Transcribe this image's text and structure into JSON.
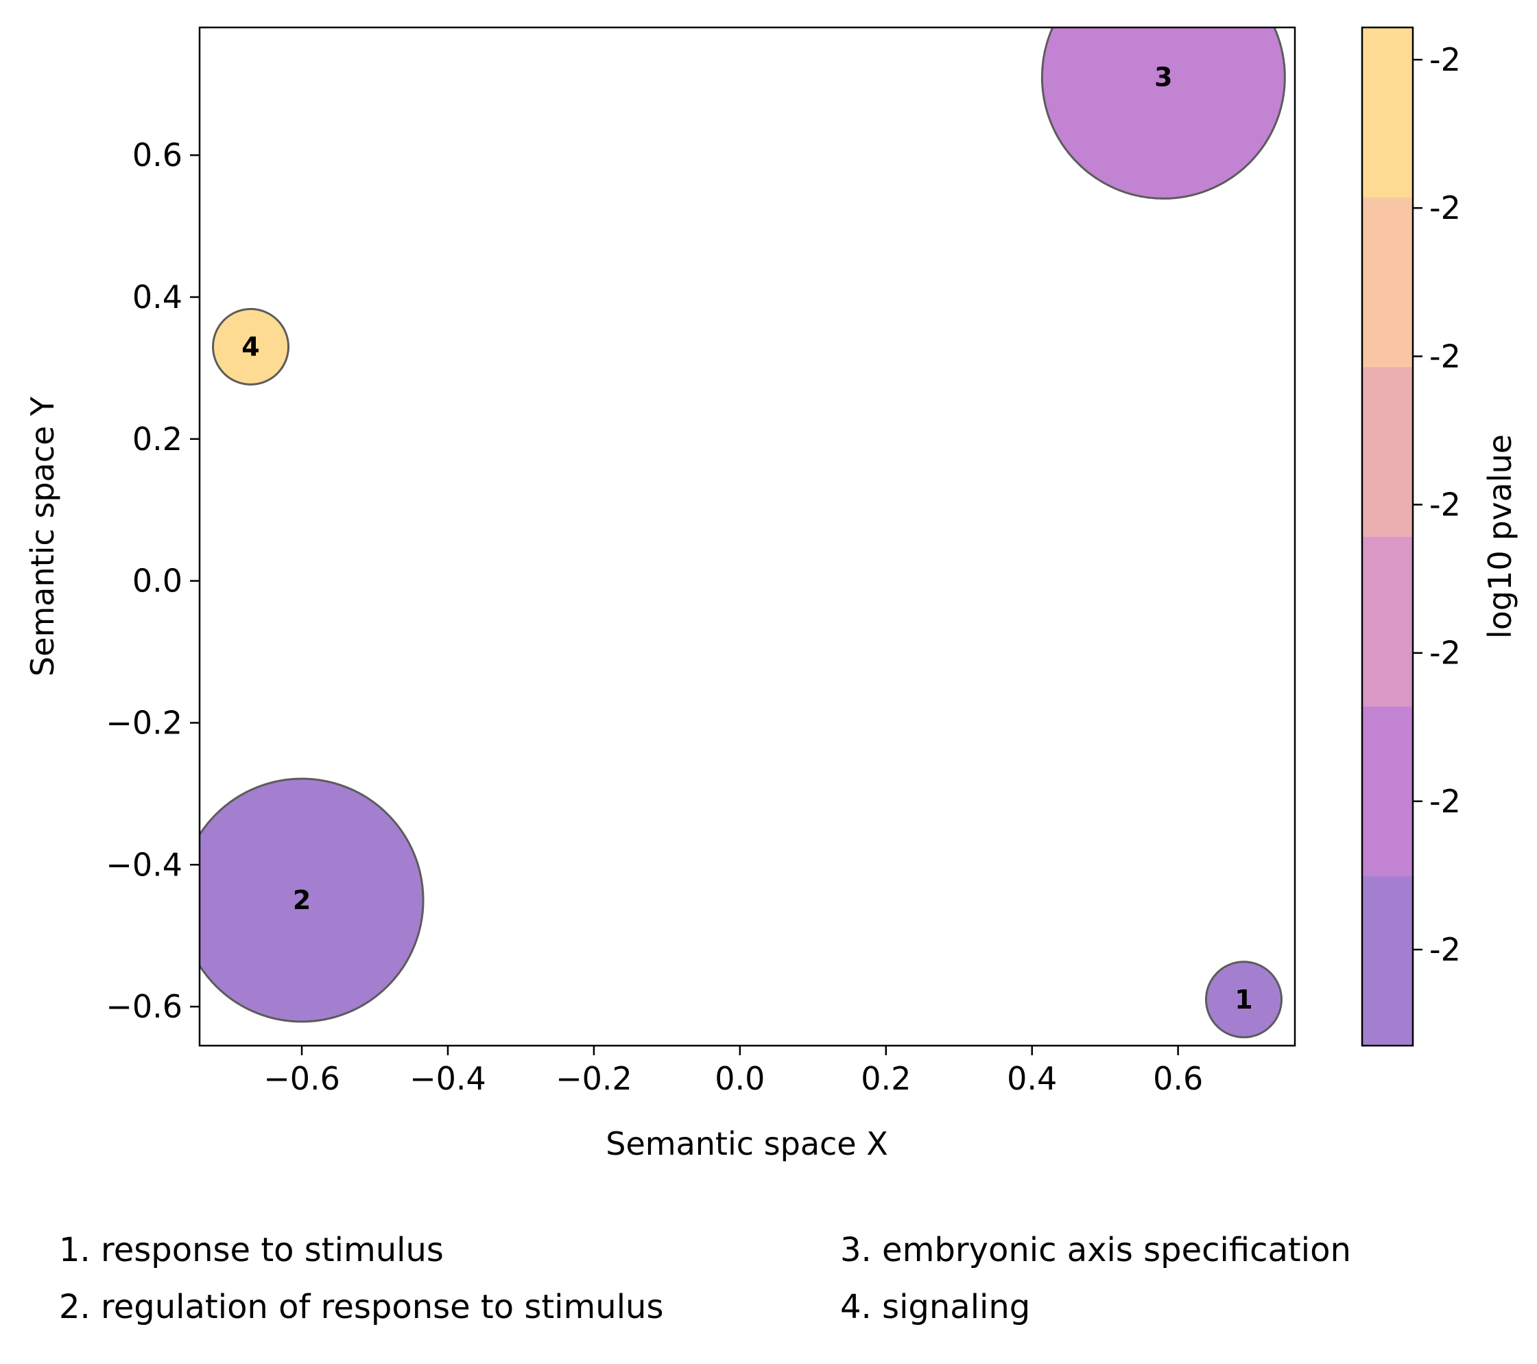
{
  "chart_data": {
    "type": "scatter",
    "xlabel": "Semantic space X",
    "ylabel": "Semantic space Y",
    "xlim": [
      -0.74,
      0.76
    ],
    "ylim": [
      -0.655,
      0.78
    ],
    "x_ticks": [
      -0.6,
      -0.4,
      -0.2,
      0.0,
      0.2,
      0.4,
      0.6
    ],
    "x_tick_labels": [
      "−0.6",
      "−0.4",
      "−0.2",
      "0.0",
      "0.2",
      "0.4",
      "0.6"
    ],
    "y_ticks": [
      -0.6,
      -0.4,
      -0.2,
      0.0,
      0.2,
      0.4,
      0.6
    ],
    "y_tick_labels": [
      "−0.6",
      "−0.4",
      "−0.2",
      "0.0",
      "0.2",
      "0.4",
      "0.6"
    ],
    "grid": false,
    "points": [
      {
        "label": "1",
        "x": 0.69,
        "y": -0.59,
        "size": 1,
        "color": "#a57fcf"
      },
      {
        "label": "2",
        "x": -0.6,
        "y": -0.45,
        "size": 10,
        "color": "#a57fcf"
      },
      {
        "label": "3",
        "x": 0.58,
        "y": 0.71,
        "size": 10,
        "color": "#c283d3"
      },
      {
        "label": "4",
        "x": -0.67,
        "y": 0.33,
        "size": 1,
        "color": "#fddb93"
      }
    ],
    "colorbar": {
      "label": "log10 pvalue",
      "colors": [
        "#a57fcf",
        "#c283d3",
        "#d998c5",
        "#ebafb2",
        "#f8c6a5",
        "#fddb93"
      ],
      "tick_labels": [
        "-2",
        "-2",
        "-2",
        "-2",
        "-2",
        "-2",
        "-2"
      ]
    },
    "legend": {
      "columns": [
        [
          "1. response to stimulus",
          "2. regulation of response to stimulus"
        ],
        [
          "3. embryonic axis specification",
          "4. signaling"
        ]
      ]
    }
  }
}
